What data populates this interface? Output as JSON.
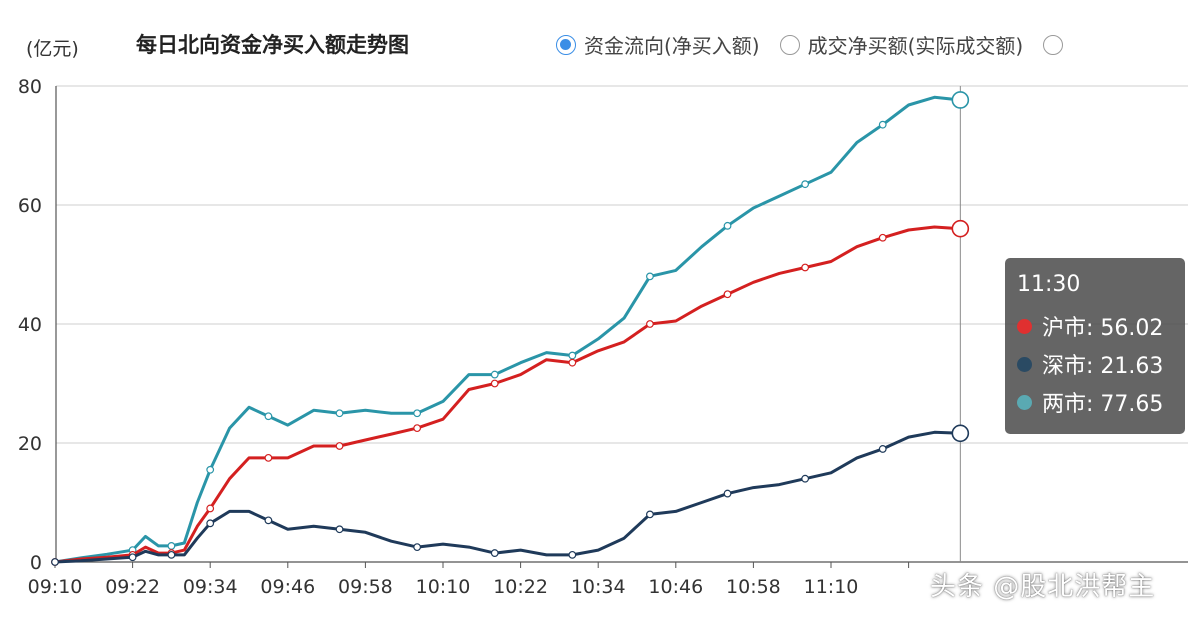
{
  "header": {
    "unit_label": "(亿元)",
    "title": "每日北向资金净买入额走势图",
    "modes": [
      {
        "label": "资金流向(净买入额)",
        "selected": true
      },
      {
        "label": "成交净买额(实际成交额)",
        "selected": false
      },
      {
        "label": "",
        "selected": false
      }
    ]
  },
  "tooltip": {
    "time": "11:30",
    "rows": [
      {
        "text": "沪市: 56.02",
        "color": "#e03030"
      },
      {
        "text": "深市: 21.63",
        "color": "#2a4a63"
      },
      {
        "text": "两市: 77.65",
        "color": "#5aa9b2"
      }
    ]
  },
  "watermark": "头条 @股北洪帮主",
  "chart_data": {
    "type": "line",
    "ylim": [
      0,
      80
    ],
    "yticks": [
      0,
      20,
      40,
      60,
      80
    ],
    "xticks": [
      "09:10",
      "09:22",
      "09:34",
      "09:46",
      "09:58",
      "10:10",
      "10:22",
      "10:34",
      "10:46",
      "10:58",
      "11:10",
      "11:22"
    ],
    "tick_label_visible": [
      true,
      true,
      true,
      true,
      true,
      true,
      true,
      true,
      true,
      true,
      true,
      false
    ],
    "grid": true,
    "x": [
      "09:10",
      "09:14",
      "09:18",
      "09:22",
      "09:24",
      "09:26",
      "09:28",
      "09:30",
      "09:32",
      "09:34",
      "09:37",
      "09:40",
      "09:43",
      "09:46",
      "09:50",
      "09:54",
      "09:58",
      "10:02",
      "10:06",
      "10:10",
      "10:14",
      "10:18",
      "10:22",
      "10:26",
      "10:30",
      "10:34",
      "10:38",
      "10:42",
      "10:46",
      "10:50",
      "10:54",
      "10:58",
      "11:02",
      "11:06",
      "11:10",
      "11:14",
      "11:18",
      "11:22",
      "11:26",
      "11:30"
    ],
    "series": [
      {
        "name": "沪市",
        "color": "#d42020",
        "values": [
          0,
          0.5,
          0.8,
          1.2,
          2.5,
          1.5,
          1.5,
          2.0,
          6,
          9,
          14,
          17.5,
          17.5,
          17.5,
          19.5,
          19.5,
          20.5,
          21.5,
          22.5,
          24,
          29,
          30,
          31.5,
          34,
          33.5,
          35.5,
          37,
          40,
          40.5,
          43,
          45,
          47,
          48.5,
          49.5,
          50.5,
          53,
          54.5,
          55.8,
          56.3,
          56.02
        ]
      },
      {
        "name": "深市",
        "color": "#1f3a5a",
        "values": [
          0,
          0.2,
          0.5,
          0.8,
          1.8,
          1.2,
          1.2,
          1.2,
          4,
          6.5,
          8.5,
          8.5,
          7,
          5.5,
          6,
          5.5,
          5,
          3.5,
          2.5,
          3,
          2.5,
          1.5,
          2,
          1.2,
          1.2,
          2,
          4,
          8,
          8.5,
          10,
          11.5,
          12.5,
          13,
          14,
          15,
          17.5,
          19,
          21,
          21.8,
          21.63
        ]
      },
      {
        "name": "两市",
        "color": "#2a95a8",
        "values": [
          0,
          0.7,
          1.3,
          2.0,
          4.3,
          2.7,
          2.7,
          3.2,
          10,
          15.5,
          22.5,
          26,
          24.5,
          23,
          25.5,
          25,
          25.5,
          25,
          25,
          27,
          31.5,
          31.5,
          33.5,
          35.2,
          34.7,
          37.5,
          41,
          48,
          49,
          53,
          56.5,
          59.5,
          61.5,
          63.5,
          65.5,
          70.5,
          73.5,
          76.8,
          78.1,
          77.65
        ]
      }
    ]
  }
}
